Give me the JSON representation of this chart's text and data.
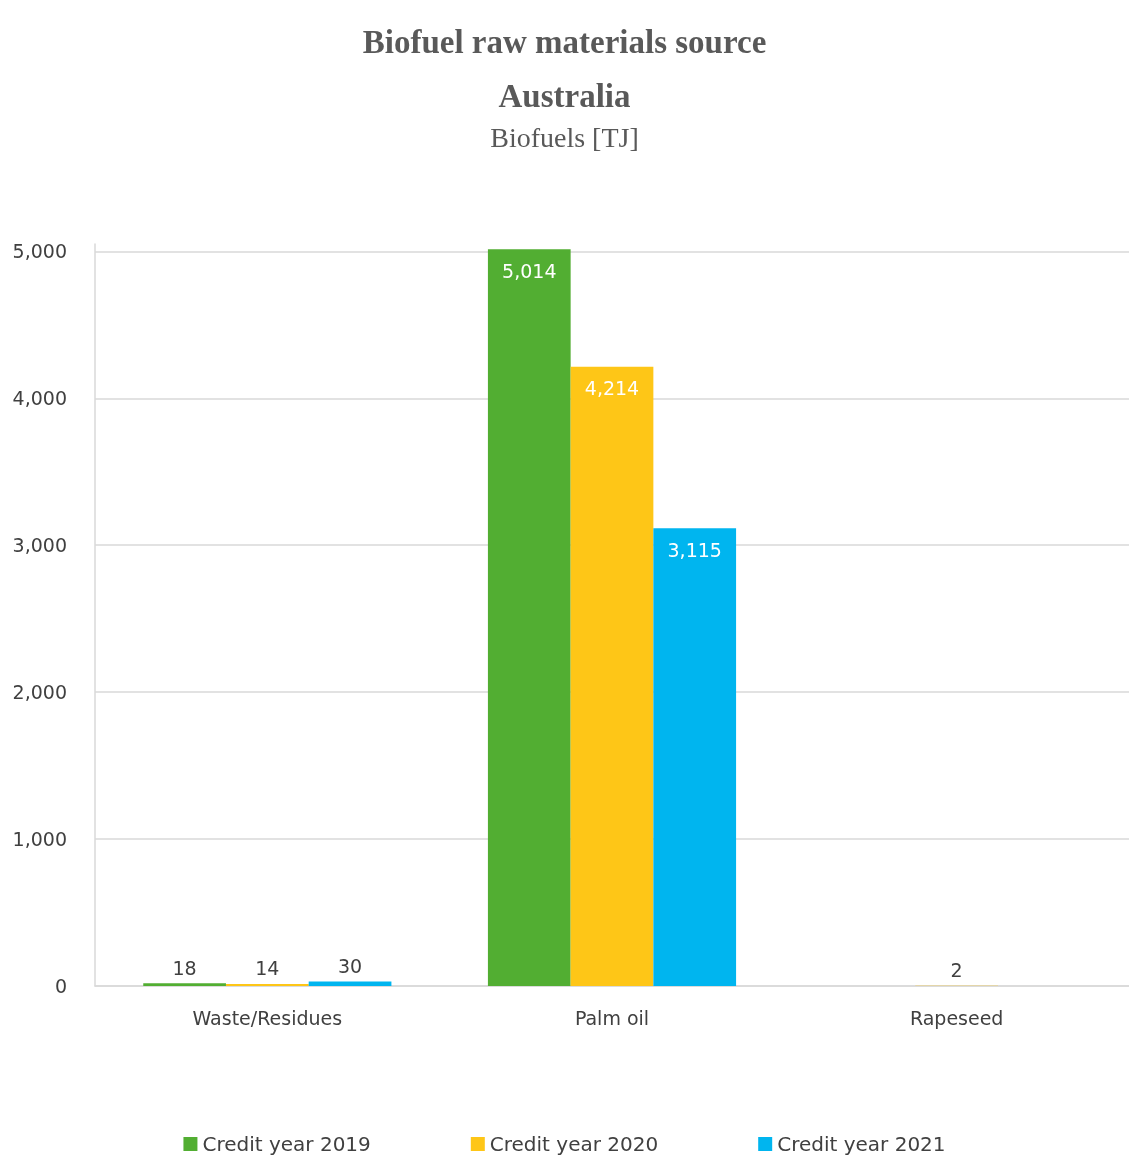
{
  "chart_data": {
    "type": "bar",
    "title": "Biofuel raw materials source\nAustralia",
    "subtitle": "Biofuels [TJ]",
    "categories": [
      "Waste/Residues",
      "Palm oil",
      "Rapeseed"
    ],
    "series": [
      {
        "name": "Credit year 2019",
        "color": "#52ae32",
        "values": [
          18,
          5014,
          null
        ],
        "value_labels": [
          "18",
          "5,014",
          null
        ]
      },
      {
        "name": "Credit year 2020",
        "color": "#fec617",
        "values": [
          14,
          4214,
          2
        ],
        "value_labels": [
          "14",
          "4,214",
          "2"
        ]
      },
      {
        "name": "Credit year 2021",
        "color": "#00b5ef",
        "values": [
          30,
          3115,
          null
        ],
        "value_labels": [
          "30",
          "3,115",
          null
        ]
      }
    ],
    "ylim": [
      0,
      5050
    ],
    "yticks": [
      0,
      {
        "value": 1000,
        "label": "1,000"
      },
      {
        "value": 2000,
        "label": "2,000"
      },
      {
        "value": 3000,
        "label": "3,000"
      },
      {
        "value": 4000,
        "label": "4,000"
      },
      {
        "value": 5000,
        "label": "5,000"
      }
    ],
    "grid": "y",
    "legend": "bottom"
  }
}
